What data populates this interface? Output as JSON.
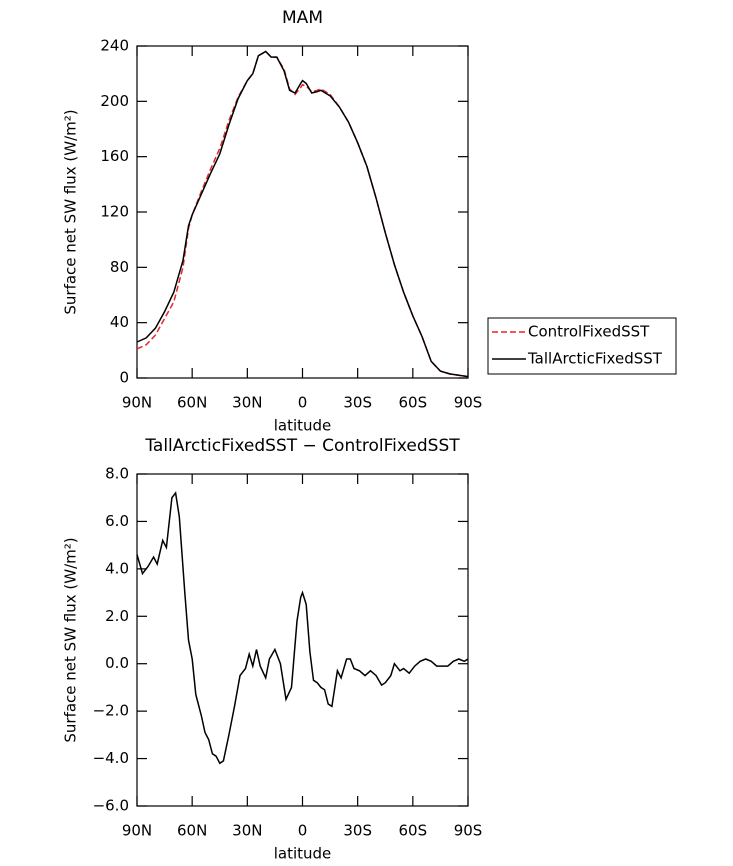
{
  "chart_data": [
    {
      "type": "line",
      "title": "MAM",
      "x_label": "latitude",
      "y_label": "Surface net SW flux (W/m²)",
      "x": [
        90,
        85,
        80,
        75,
        70,
        65,
        62,
        60,
        55,
        50,
        45,
        40,
        35,
        30,
        27,
        24,
        20,
        17,
        14,
        10,
        7,
        4,
        1,
        0,
        -2,
        -5,
        -8,
        -10,
        -15,
        -20,
        -25,
        -30,
        -35,
        -40,
        -45,
        -50,
        -55,
        -60,
        -65,
        -70,
        -75,
        -80,
        -85,
        -90
      ],
      "series": [
        {
          "name": "ControlFixedSST",
          "color": "#e8262a",
          "dash": true,
          "values": [
            21,
            24,
            31,
            43,
            55,
            80,
            108,
            118,
            135,
            151,
            166,
            186,
            203,
            215,
            220,
            233,
            236,
            232,
            232,
            223,
            209,
            205,
            210,
            212,
            211,
            207,
            208,
            209,
            205,
            196,
            185,
            170,
            153,
            130,
            105,
            82,
            62,
            45,
            30,
            12,
            5,
            3,
            2,
            1
          ]
        },
        {
          "name": "TallArcticFixedSST",
          "color": "#000000",
          "dash": false,
          "values": [
            26,
            29,
            36,
            48,
            62,
            85,
            110,
            118,
            133,
            148,
            162,
            183,
            202,
            215,
            220,
            233,
            236,
            232,
            232,
            222,
            208,
            206,
            213,
            215,
            213,
            206,
            207,
            208,
            204,
            196,
            185,
            170,
            153,
            130,
            105,
            82,
            62,
            45,
            30,
            12,
            5,
            3,
            2,
            1
          ]
        }
      ],
      "xlim": [
        90,
        -90
      ],
      "xticks": [
        {
          "value": 90,
          "label": "90N"
        },
        {
          "value": 60,
          "label": "60N"
        },
        {
          "value": 30,
          "label": "30N"
        },
        0,
        {
          "value": -30,
          "label": "30S"
        },
        {
          "value": -60,
          "label": "60S"
        },
        {
          "value": -90,
          "label": "90S"
        }
      ],
      "ylim": [
        0,
        240
      ],
      "yticks": [
        0,
        40,
        80,
        120,
        160,
        200,
        240
      ],
      "legend": "right"
    },
    {
      "type": "line",
      "title": "TallArcticFixedSST − ControlFixedSST",
      "x_label": "latitude",
      "y_label": "Surface net SW flux (W/m²)",
      "x": [
        90,
        87,
        84,
        81,
        79,
        76,
        74,
        71,
        69,
        67,
        64,
        62,
        60,
        58,
        55,
        53,
        51,
        49,
        47,
        45,
        43,
        40,
        37,
        34,
        31,
        29,
        27,
        25,
        23,
        20,
        18,
        15,
        12,
        9,
        6,
        3,
        1,
        0,
        -2,
        -4,
        -6,
        -8,
        -10,
        -12,
        -14,
        -16,
        -19,
        -21,
        -24,
        -26,
        -28,
        -31,
        -34,
        -37,
        -40,
        -43,
        -45,
        -48,
        -50,
        -53,
        -55,
        -58,
        -61,
        -64,
        -67,
        -70,
        -73,
        -76,
        -79,
        -82,
        -85,
        -88,
        -90
      ],
      "values": [
        4.6,
        3.8,
        4.1,
        4.5,
        4.2,
        5.2,
        4.9,
        7.0,
        7.2,
        6.2,
        3.0,
        1.0,
        0.2,
        -1.3,
        -2.2,
        -2.9,
        -3.2,
        -3.8,
        -3.9,
        -4.2,
        -4.1,
        -3.0,
        -1.8,
        -0.5,
        -0.2,
        0.4,
        -0.1,
        0.6,
        -0.1,
        -0.6,
        0.2,
        0.6,
        0.0,
        -1.5,
        -1.0,
        1.8,
        2.8,
        3.0,
        2.5,
        0.5,
        -0.7,
        -0.8,
        -1.0,
        -1.1,
        -1.7,
        -1.8,
        -0.3,
        -0.6,
        0.2,
        0.2,
        -0.2,
        -0.3,
        -0.5,
        -0.3,
        -0.5,
        -0.9,
        -0.8,
        -0.5,
        0.0,
        -0.3,
        -0.2,
        -0.4,
        -0.1,
        0.1,
        0.2,
        0.1,
        -0.1,
        -0.1,
        -0.1,
        0.1,
        0.2,
        0.1,
        0.2
      ],
      "color": "#000000",
      "xlim": [
        90,
        -90
      ],
      "xticks": [
        {
          "value": 90,
          "label": "90N"
        },
        {
          "value": 60,
          "label": "60N"
        },
        {
          "value": 30,
          "label": "30N"
        },
        0,
        {
          "value": -30,
          "label": "30S"
        },
        {
          "value": -60,
          "label": "60S"
        },
        {
          "value": -90,
          "label": "90S"
        }
      ],
      "ylim": [
        -6,
        8
      ],
      "yticks": [
        {
          "value": -6,
          "label": "−6.0"
        },
        {
          "value": -4,
          "label": "−4.0"
        },
        {
          "value": -2,
          "label": "−2.0"
        },
        {
          "value": 0,
          "label": "0.0"
        },
        {
          "value": 2,
          "label": "2.0"
        },
        {
          "value": 4,
          "label": "4.0"
        },
        {
          "value": 6,
          "label": "6.0"
        },
        {
          "value": 8,
          "label": "8.0"
        }
      ]
    }
  ]
}
